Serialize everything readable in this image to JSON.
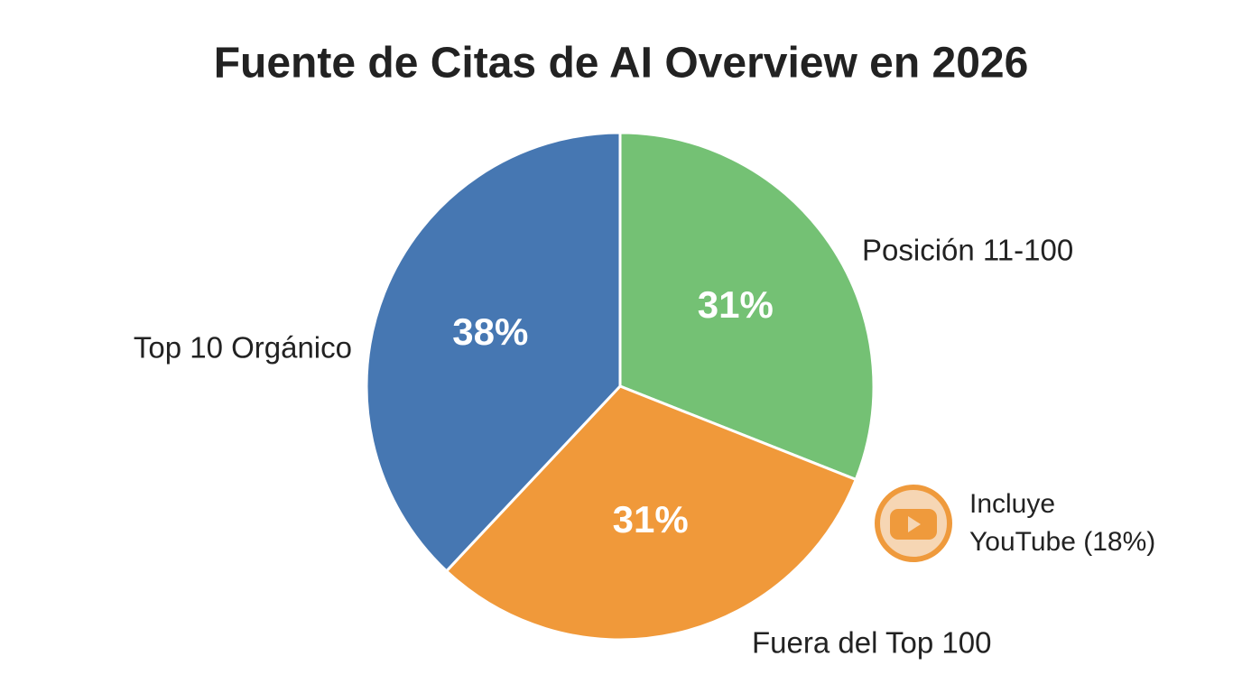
{
  "chart_data": {
    "type": "pie",
    "title": "Fuente de Citas de AI Overview en 2026",
    "categories": [
      "Posición 11-100",
      "Fuera del Top 100",
      "Top 10 Orgánico"
    ],
    "values": [
      31,
      31,
      38
    ],
    "value_labels": [
      "31%",
      "31%",
      "38%"
    ],
    "colors": [
      "#74c174",
      "#f0993a",
      "#4677b2"
    ],
    "annotation": [
      "Incluye",
      "YouTube (18%)"
    ]
  }
}
